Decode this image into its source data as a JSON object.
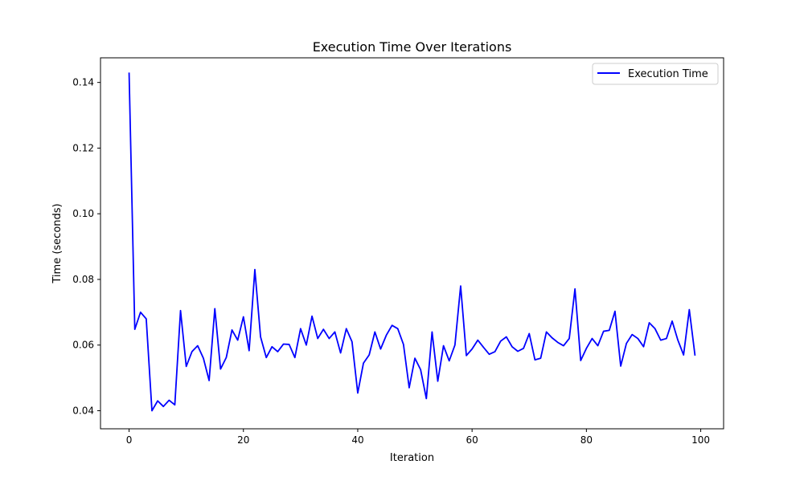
{
  "chart_data": {
    "type": "line",
    "title": "Execution Time Over Iterations",
    "xlabel": "Iteration",
    "ylabel": "Time (seconds)",
    "xlim": [
      -5,
      104
    ],
    "ylim": [
      0.0345,
      0.1475
    ],
    "xticks": [
      0,
      20,
      40,
      60,
      80,
      100
    ],
    "xtick_labels": [
      "0",
      "20",
      "40",
      "60",
      "80",
      "100"
    ],
    "yticks": [
      0.04,
      0.06,
      0.08,
      0.1,
      0.12,
      0.14
    ],
    "ytick_labels": [
      "0.04",
      "0.06",
      "0.08",
      "0.10",
      "0.12",
      "0.14"
    ],
    "grid": false,
    "legend_position": "upper right",
    "series": [
      {
        "name": "Execution Time",
        "color": "#0000ff",
        "x": [
          0,
          1,
          2,
          3,
          4,
          5,
          6,
          7,
          8,
          9,
          10,
          11,
          12,
          13,
          14,
          15,
          16,
          17,
          18,
          19,
          20,
          21,
          22,
          23,
          24,
          25,
          26,
          27,
          28,
          29,
          30,
          31,
          32,
          33,
          34,
          35,
          36,
          37,
          38,
          39,
          40,
          41,
          42,
          43,
          44,
          45,
          46,
          47,
          48,
          49,
          50,
          51,
          52,
          53,
          54,
          55,
          56,
          57,
          58,
          59,
          60,
          61,
          62,
          63,
          64,
          65,
          66,
          67,
          68,
          69,
          70,
          71,
          72,
          73,
          74,
          75,
          76,
          77,
          78,
          79,
          80,
          81,
          82,
          83,
          84,
          85,
          86,
          87,
          88,
          89,
          90,
          91,
          92,
          93,
          94,
          95,
          96,
          97,
          98,
          99
        ],
        "y": [
          0.143,
          0.0648,
          0.07,
          0.068,
          0.04,
          0.043,
          0.0413,
          0.0432,
          0.0418,
          0.0705,
          0.0535,
          0.058,
          0.0598,
          0.056,
          0.0492,
          0.0711,
          0.0527,
          0.0562,
          0.0646,
          0.0615,
          0.0686,
          0.0583,
          0.083,
          0.0625,
          0.0562,
          0.0595,
          0.058,
          0.0603,
          0.0602,
          0.0562,
          0.065,
          0.06,
          0.0688,
          0.062,
          0.0648,
          0.062,
          0.064,
          0.0576,
          0.065,
          0.061,
          0.0454,
          0.0545,
          0.057,
          0.064,
          0.0588,
          0.063,
          0.066,
          0.065,
          0.0602,
          0.047,
          0.056,
          0.0525,
          0.0437,
          0.064,
          0.049,
          0.0598,
          0.0552,
          0.06,
          0.078,
          0.0568,
          0.0588,
          0.0615,
          0.0593,
          0.0572,
          0.058,
          0.0612,
          0.0625,
          0.0595,
          0.0581,
          0.059,
          0.0635,
          0.0555,
          0.056,
          0.064,
          0.0622,
          0.0608,
          0.0598,
          0.062,
          0.0771,
          0.0553,
          0.059,
          0.062,
          0.0598,
          0.0642,
          0.0645,
          0.0703,
          0.0536,
          0.0605,
          0.0632,
          0.062,
          0.0595,
          0.0668,
          0.065,
          0.0615,
          0.062,
          0.0673,
          0.0615,
          0.057,
          0.0708,
          0.0568
        ]
      }
    ]
  }
}
